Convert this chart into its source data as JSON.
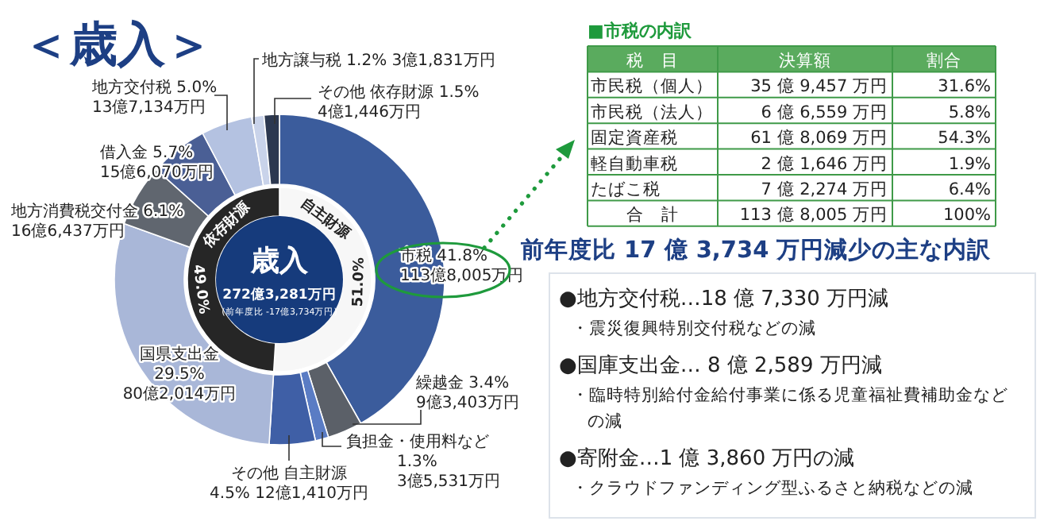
{
  "chart_data": [
    {
      "type": "donut",
      "title": "＜歳入＞",
      "categories": [
        "市税",
        "繰越金",
        "負担金・使用料など",
        "その他 自主財源",
        "国県支出金",
        "地方消費税交付金",
        "借入金",
        "地方交付税",
        "地方譲与税",
        "その他 依存財源"
      ],
      "values": [
        41.8,
        3.4,
        1.3,
        4.5,
        29.5,
        6.1,
        5.7,
        5.0,
        1.2,
        1.5
      ],
      "value_labels": [
        "41.8%",
        "3.4%",
        "1.3%",
        "4.5%",
        "29.5%",
        "6.1%",
        "5.7%",
        "5.0%",
        "1.2%",
        "1.5%"
      ],
      "colors": [
        "#3b5c9c",
        "#5b6068",
        "#5a7cc4",
        "#3f5fa6",
        "#a9b7d8",
        "#60666f",
        "#4a5f95",
        "#b4c2e1",
        "#c9d3ea",
        "#2c3850"
      ],
      "annotations": [
        "113億8,005万円",
        "9億3,403万円",
        "3億5,531万円",
        "12億1,410万円",
        "80億2,014万円",
        "16億6,437万円",
        "15億6,070万円",
        "13億7,134万円",
        "3億1,831万円",
        "4億1,446万円"
      ]
    },
    {
      "type": "donut",
      "categories": [
        "自主財源",
        "依存財源"
      ],
      "values": [
        51.0,
        49.0
      ],
      "value_labels": [
        "51.0%",
        "49.0%"
      ],
      "colors": [
        "#f7f7f7",
        "#262626"
      ],
      "annotations": [
        "歳入",
        "272億3,281万円",
        "(前年度比 -17億3,734万円)"
      ]
    },
    {
      "type": "other",
      "title": "■市税の内訳",
      "annotations": [
        "税　目",
        "決算額",
        "割合",
        "市民税（個人）",
        "35 億 9,457 万円",
        "31.6%",
        "市民税（法人）",
        "6 億 6,559 万円",
        "5.8%",
        "固定資産税",
        "61 億 8,069 万円",
        "54.3%",
        "軽自動車税",
        "2 億 1,646 万円",
        "1.9%",
        "たばこ税",
        "7 億 2,274 万円",
        "6.4%",
        "合　計",
        "113 億 8,005 万円",
        "100%"
      ]
    },
    {
      "type": "other",
      "title": "前年度比 17 億 3,734 万円減少の主な内訳",
      "annotations": [
        "●地方交付税…18 億 7,330 万円減",
        "・震災復興特別交付税などの減",
        "●国庫支出金… 8 億 2,589 万円減",
        "・臨時特別給付金給付事業に係る児童福祉費補助金などの減",
        "●寄附金…1 億 3,860 万円の減",
        "・クラウドファンディング型ふるさと納税などの減"
      ]
    }
  ]
}
